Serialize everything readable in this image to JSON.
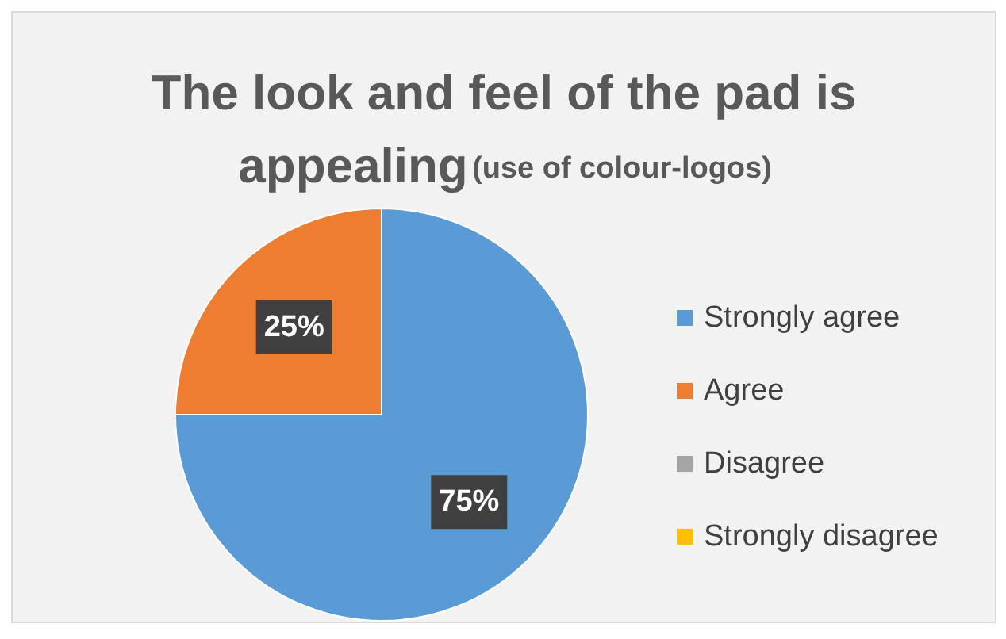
{
  "chart_data": {
    "type": "pie",
    "title": "The look and feel of the pad is appealing",
    "subtitle": "(use of colour-logos)",
    "categories": [
      "Strongly agree",
      "Agree",
      "Disagree",
      "Strongly disagree"
    ],
    "values": [
      75,
      25,
      0,
      0
    ],
    "colors": [
      "#5b9bd5",
      "#ed7d31",
      "#a5a5a5",
      "#ffc000"
    ],
    "value_labels": [
      "75%",
      "25%",
      null,
      null
    ],
    "legend": "right"
  }
}
